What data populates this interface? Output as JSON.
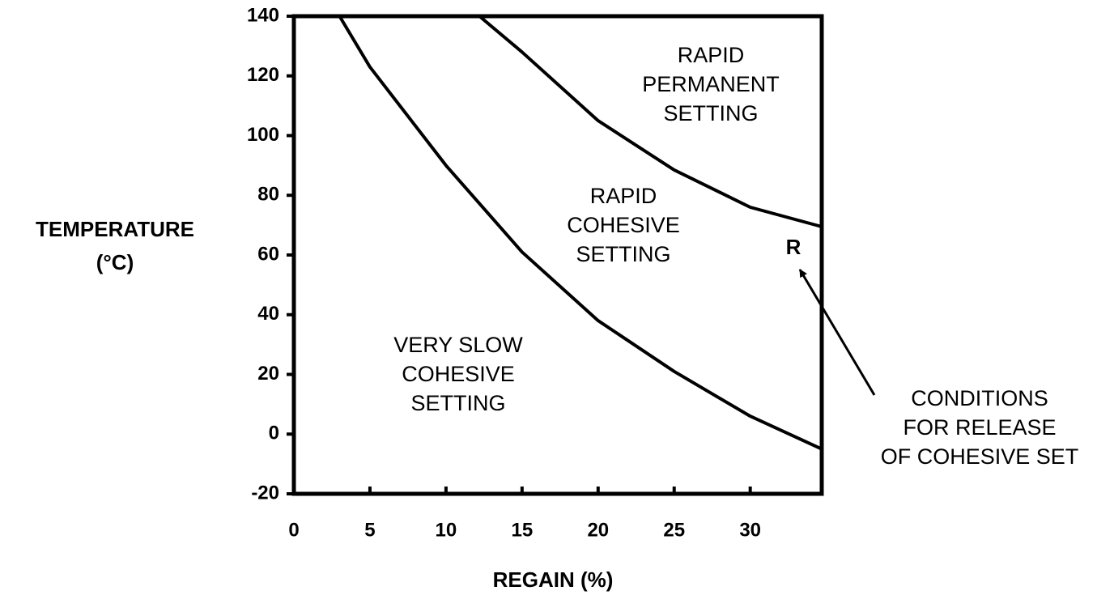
{
  "chart_data": {
    "type": "line",
    "x_label": "REGAIN (%)",
    "y_label": [
      "TEMPERATURE",
      "(°C)"
    ],
    "series": [
      {
        "color": "#000000",
        "x": [
          3.0,
          5,
          10,
          15,
          20,
          25,
          30,
          34.7
        ],
        "values": [
          140,
          123,
          90,
          61,
          38,
          21,
          6,
          -5
        ]
      },
      {
        "color": "#000000",
        "x": [
          12.2,
          15,
          20,
          25,
          30,
          34.7
        ],
        "values": [
          140,
          128,
          105,
          88.5,
          76,
          69.5
        ]
      }
    ],
    "xlim": [
      0,
      34.7
    ],
    "xticks": [
      0,
      5,
      10,
      15,
      20,
      25,
      30
    ],
    "ylim": [
      -20,
      140
    ],
    "yticks": [
      -20,
      0,
      20,
      40,
      60,
      80,
      100,
      120,
      140
    ],
    "annotations": [
      [
        "RAPID",
        "PERMANENT",
        "SETTING"
      ],
      [
        "RAPID",
        "COHESIVE",
        "SETTING"
      ],
      [
        "VERY SLOW",
        "COHESIVE",
        "SETTING"
      ],
      [
        "R"
      ],
      [
        "CONDITIONS",
        "FOR RELEASE",
        "OF COHESIVE SET"
      ]
    ]
  }
}
